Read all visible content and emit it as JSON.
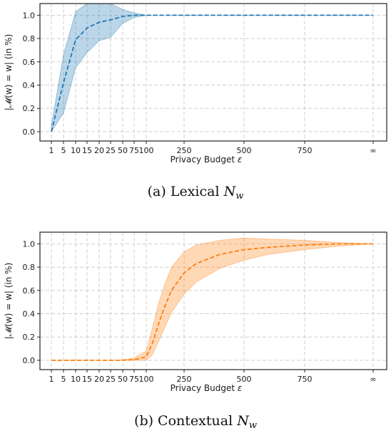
{
  "chart_data": [
    {
      "type": "line",
      "caption_prefix": "(a)",
      "caption_text": "Lexical",
      "caption_math": "N",
      "caption_sub": "w",
      "xlabel": "Privacy Budget",
      "xlabel_symbol": "ε",
      "ylabel": "|𝓜(w) = w| (in %)",
      "x_tick_labels": [
        "1",
        "5",
        "10",
        "15",
        "20",
        "25",
        "50",
        "75",
        "100",
        "250",
        "500",
        "750",
        "∞"
      ],
      "yticks": [
        "0.0",
        "0.2",
        "0.4",
        "0.6",
        "0.8",
        "1.0"
      ],
      "ylim": [
        -0.08,
        1.1
      ],
      "grid": true,
      "color": "#1f77b4",
      "band_color": "#1f77b4",
      "series": [
        {
          "x": [
            "1",
            "5",
            "10",
            "15",
            "20",
            "25",
            "50",
            "75",
            "100",
            "250",
            "500",
            "750",
            "∞"
          ],
          "values": [
            0.0,
            0.42,
            0.79,
            0.89,
            0.94,
            0.96,
            0.99,
            1.0,
            1.0,
            1.0,
            1.0,
            1.0,
            1.0
          ],
          "upper": [
            0.05,
            0.66,
            1.03,
            1.1,
            1.1,
            1.1,
            1.05,
            1.02,
            1.0,
            1.0,
            1.0,
            1.0,
            1.0
          ],
          "lower": [
            0.0,
            0.16,
            0.55,
            0.68,
            0.78,
            0.81,
            0.93,
            0.98,
            1.0,
            1.0,
            1.0,
            1.0,
            1.0
          ]
        }
      ]
    },
    {
      "type": "line",
      "caption_prefix": "(b)",
      "caption_text": "Contextual",
      "caption_math": "N",
      "caption_sub": "w",
      "xlabel": "Privacy Budget",
      "xlabel_symbol": "ε",
      "ylabel": "|𝓜(w) = w| (in %)",
      "x_tick_labels": [
        "1",
        "5",
        "10",
        "15",
        "20",
        "25",
        "50",
        "75",
        "100",
        "250",
        "500",
        "750",
        "∞"
      ],
      "yticks": [
        "0.0",
        "0.2",
        "0.4",
        "0.6",
        "0.8",
        "1.0"
      ],
      "ylim": [
        -0.08,
        1.1
      ],
      "grid": true,
      "color": "#ff7f0e",
      "band_color": "#ff7f0e",
      "series": [
        {
          "x": [
            "1",
            "5",
            "10",
            "15",
            "20",
            "25",
            "50",
            "75",
            "100",
            "125",
            "150",
            "175",
            "200",
            "250",
            "300",
            "400",
            "500",
            "600",
            "750",
            "875",
            "∞"
          ],
          "values": [
            0.0,
            0.0,
            0.0,
            0.0,
            0.0,
            0.0,
            0.0,
            0.005,
            0.03,
            0.15,
            0.32,
            0.47,
            0.6,
            0.75,
            0.83,
            0.91,
            0.95,
            0.97,
            0.99,
            1.0,
            1.0
          ],
          "upper": [
            0.0,
            0.0,
            0.0,
            0.0,
            0.0,
            0.0,
            0.005,
            0.02,
            0.08,
            0.28,
            0.5,
            0.66,
            0.8,
            0.93,
            0.99,
            1.03,
            1.05,
            1.04,
            1.03,
            1.01,
            1.0
          ],
          "lower": [
            0.0,
            0.0,
            0.0,
            0.0,
            0.0,
            0.0,
            0.0,
            0.0,
            0.0,
            0.05,
            0.17,
            0.29,
            0.41,
            0.57,
            0.67,
            0.79,
            0.86,
            0.91,
            0.95,
            0.98,
            1.0
          ]
        }
      ]
    }
  ]
}
